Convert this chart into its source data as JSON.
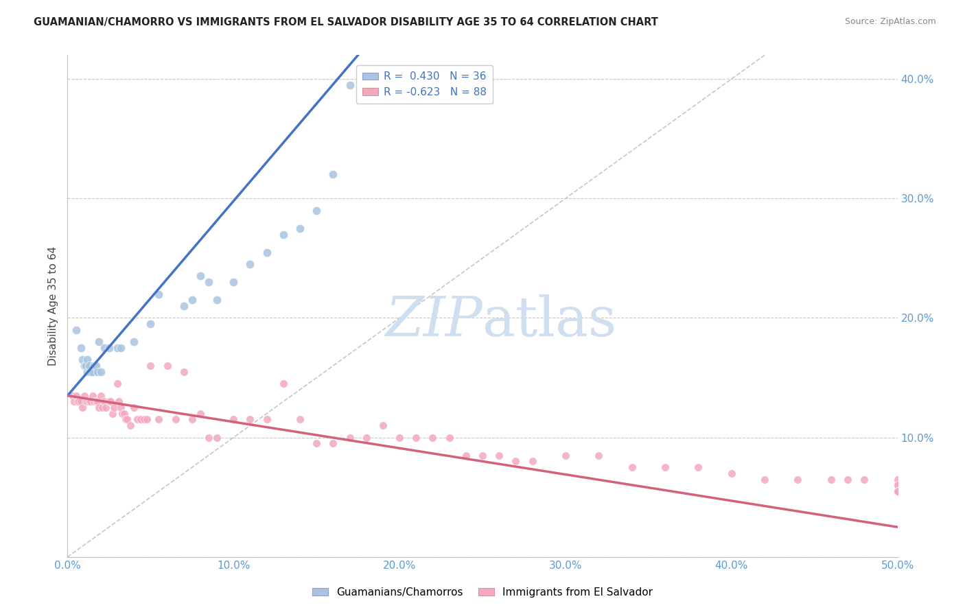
{
  "title": "GUAMANIAN/CHAMORRO VS IMMIGRANTS FROM EL SALVADOR DISABILITY AGE 35 TO 64 CORRELATION CHART",
  "source": "Source: ZipAtlas.com",
  "ylabel": "Disability Age 35 to 64",
  "xlim": [
    0.0,
    0.5
  ],
  "ylim": [
    0.0,
    0.42
  ],
  "x_ticks": [
    0.0,
    0.1,
    0.2,
    0.3,
    0.4,
    0.5
  ],
  "x_tick_labels": [
    "0.0%",
    "10.0%",
    "20.0%",
    "30.0%",
    "40.0%",
    "50.0%"
  ],
  "y_ticks": [
    0.0,
    0.1,
    0.2,
    0.3,
    0.4
  ],
  "y_tick_labels": [
    "",
    "10.0%",
    "20.0%",
    "30.0%",
    "40.0%"
  ],
  "blue_R": 0.43,
  "blue_N": 36,
  "pink_R": -0.623,
  "pink_N": 88,
  "blue_color": "#a8c4e0",
  "pink_color": "#f4a8c0",
  "blue_line_color": "#4472c4",
  "pink_line_color": "#d4607a",
  "diagonal_line_color": "#b8b8b8",
  "watermark_color": "#d0dff0",
  "background_color": "#ffffff",
  "tick_color": "#5b9bd5",
  "blue_scatter_x": [
    0.005,
    0.008,
    0.009,
    0.01,
    0.011,
    0.012,
    0.012,
    0.013,
    0.013,
    0.014,
    0.015,
    0.016,
    0.017,
    0.018,
    0.019,
    0.02,
    0.022,
    0.025,
    0.03,
    0.032,
    0.04,
    0.05,
    0.055,
    0.07,
    0.075,
    0.08,
    0.085,
    0.09,
    0.1,
    0.11,
    0.12,
    0.13,
    0.14,
    0.15,
    0.16,
    0.17
  ],
  "blue_scatter_y": [
    0.19,
    0.175,
    0.165,
    0.16,
    0.16,
    0.155,
    0.165,
    0.155,
    0.16,
    0.155,
    0.155,
    0.16,
    0.16,
    0.155,
    0.18,
    0.155,
    0.175,
    0.175,
    0.175,
    0.175,
    0.18,
    0.195,
    0.22,
    0.21,
    0.215,
    0.235,
    0.23,
    0.215,
    0.23,
    0.245,
    0.255,
    0.27,
    0.275,
    0.29,
    0.32,
    0.395
  ],
  "pink_scatter_x": [
    0.003,
    0.004,
    0.005,
    0.006,
    0.007,
    0.008,
    0.009,
    0.01,
    0.011,
    0.012,
    0.013,
    0.014,
    0.015,
    0.016,
    0.017,
    0.018,
    0.019,
    0.02,
    0.021,
    0.022,
    0.023,
    0.025,
    0.026,
    0.027,
    0.028,
    0.03,
    0.031,
    0.032,
    0.033,
    0.034,
    0.035,
    0.036,
    0.038,
    0.04,
    0.042,
    0.044,
    0.046,
    0.048,
    0.05,
    0.055,
    0.06,
    0.065,
    0.07,
    0.075,
    0.08,
    0.085,
    0.09,
    0.1,
    0.11,
    0.12,
    0.13,
    0.14,
    0.15,
    0.16,
    0.17,
    0.18,
    0.19,
    0.2,
    0.21,
    0.22,
    0.23,
    0.24,
    0.25,
    0.26,
    0.27,
    0.28,
    0.3,
    0.32,
    0.34,
    0.36,
    0.38,
    0.4,
    0.42,
    0.44,
    0.46,
    0.47,
    0.48,
    0.5,
    0.5,
    0.5,
    0.5,
    0.5,
    0.5,
    0.5,
    0.5,
    0.5,
    0.5,
    0.5
  ],
  "pink_scatter_y": [
    0.135,
    0.13,
    0.135,
    0.13,
    0.13,
    0.13,
    0.125,
    0.135,
    0.13,
    0.13,
    0.13,
    0.13,
    0.135,
    0.13,
    0.13,
    0.13,
    0.125,
    0.135,
    0.125,
    0.13,
    0.125,
    0.13,
    0.13,
    0.12,
    0.125,
    0.145,
    0.13,
    0.125,
    0.12,
    0.12,
    0.115,
    0.115,
    0.11,
    0.125,
    0.115,
    0.115,
    0.115,
    0.115,
    0.16,
    0.115,
    0.16,
    0.115,
    0.155,
    0.115,
    0.12,
    0.1,
    0.1,
    0.115,
    0.115,
    0.115,
    0.145,
    0.115,
    0.095,
    0.095,
    0.1,
    0.1,
    0.11,
    0.1,
    0.1,
    0.1,
    0.1,
    0.085,
    0.085,
    0.085,
    0.08,
    0.08,
    0.085,
    0.085,
    0.075,
    0.075,
    0.075,
    0.07,
    0.065,
    0.065,
    0.065,
    0.065,
    0.065,
    0.065,
    0.06,
    0.06,
    0.055,
    0.055,
    0.055,
    0.055,
    0.055,
    0.055,
    0.055,
    0.055
  ],
  "blue_line_x": [
    0.0,
    0.175
  ],
  "blue_line_y": [
    0.135,
    0.42
  ],
  "pink_line_x": [
    0.0,
    0.5
  ],
  "pink_line_y": [
    0.135,
    0.025
  ]
}
